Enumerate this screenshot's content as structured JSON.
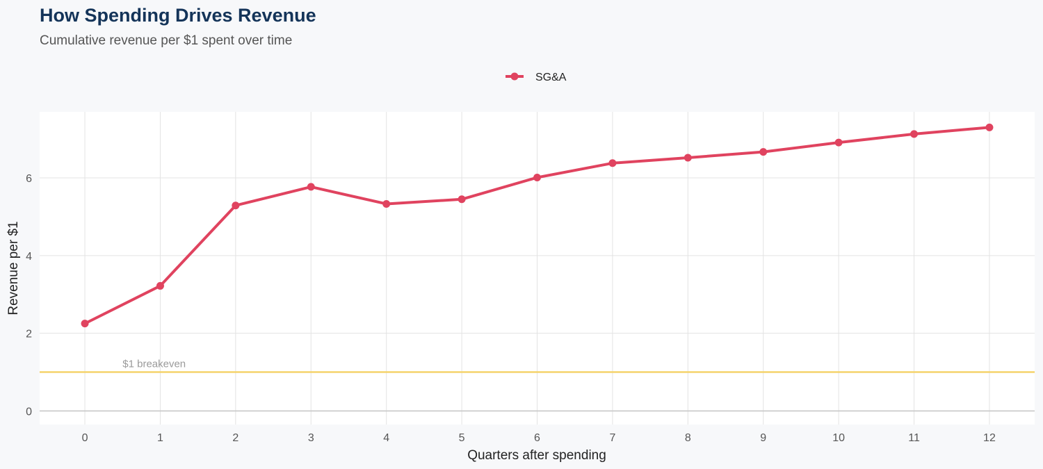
{
  "chart_data": {
    "type": "line",
    "title": "How Spending Drives Revenue",
    "subtitle": "Cumulative revenue per $1 spent over time",
    "xlabel": "Quarters after spending",
    "ylabel": "Revenue per $1",
    "x": [
      0,
      1,
      2,
      3,
      4,
      5,
      6,
      7,
      8,
      9,
      10,
      11,
      12
    ],
    "x_tick_labels": [
      "0",
      "1",
      "2",
      "3",
      "4",
      "5",
      "6",
      "7",
      "8",
      "9",
      "10",
      "11",
      "12"
    ],
    "y_ticks": [
      0,
      2,
      4,
      6
    ],
    "y_tick_labels": [
      "0",
      "2",
      "4",
      "6"
    ],
    "xlim": [
      -0.6,
      12.6
    ],
    "ylim": [
      -0.35,
      7.7
    ],
    "grid": true,
    "legend_position": "top-center",
    "series": [
      {
        "name": "SG&A",
        "color": "#e0435f",
        "values": [
          2.25,
          3.22,
          5.29,
          5.77,
          5.33,
          5.45,
          6.01,
          6.38,
          6.52,
          6.67,
          6.91,
          7.13,
          7.3
        ]
      }
    ],
    "reference_line": {
      "value": 1,
      "label": "$1 breakeven",
      "color": "#f5d36b"
    },
    "colors": {
      "background": "#f7f8fa",
      "panel": "#ffffff",
      "grid": "#e3e3e3",
      "zero_line": "#c8c8c8",
      "title": "#143459"
    }
  }
}
